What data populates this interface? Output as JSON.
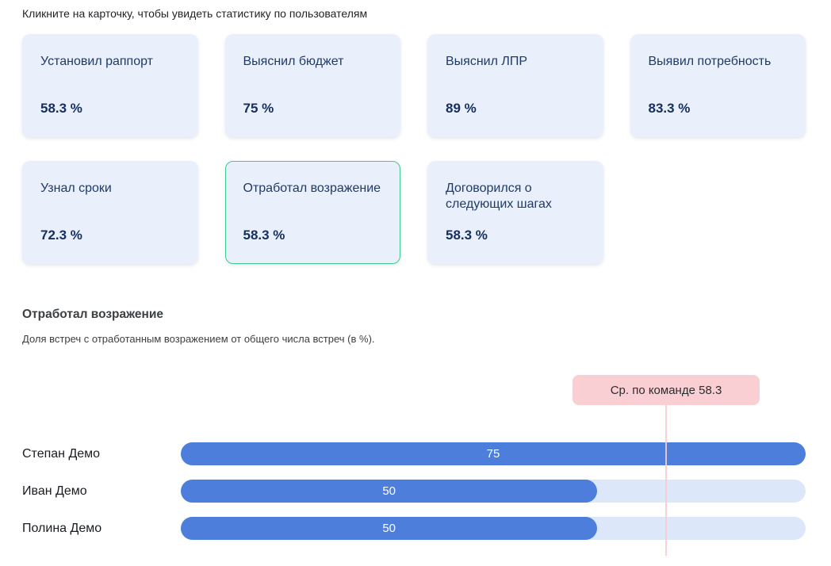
{
  "instruction": "Кликните на карточку, чтобы увидеть статистику по пользователям",
  "cards": [
    {
      "title": "Установил раппорт",
      "value": "58.3 %",
      "selected": false
    },
    {
      "title": "Выяснил бюджет",
      "value": "75 %",
      "selected": false
    },
    {
      "title": "Выяснил ЛПР",
      "value": "89 %",
      "selected": false
    },
    {
      "title": "Выявил потребность",
      "value": "83.3 %",
      "selected": false
    },
    {
      "title": "Узнал сроки",
      "value": "72.3 %",
      "selected": false
    },
    {
      "title": "Отработал возражение",
      "value": "58.3 %",
      "selected": true
    },
    {
      "title": "Договорился о следующих шагах",
      "value": "58.3 %",
      "selected": false
    }
  ],
  "detail": {
    "title": "Отработал возражение",
    "description": "Доля встреч с отработанным возражением от общего числа встреч (в %)."
  },
  "chart_data": {
    "type": "bar",
    "orientation": "horizontal",
    "categories": [
      "Степан Демо",
      "Иван Демо",
      "Полина Демо"
    ],
    "values": [
      75,
      50,
      50
    ],
    "xlim": [
      0,
      75
    ],
    "grid": false,
    "legend": false,
    "team_average": {
      "label": "Ср. по команде 58.3",
      "value": 58.3
    },
    "colors": {
      "bar": "#4d7edc",
      "track": "#dce7f9",
      "average_badge": "#f9cfd3",
      "average_line": "#f6cdd1",
      "selected_card_border": "#3fcb8e"
    }
  }
}
